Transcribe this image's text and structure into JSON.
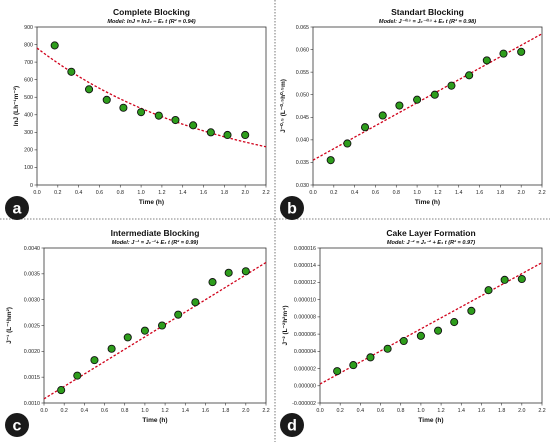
{
  "colors": {
    "marker": "#2e9d1c",
    "marker_edge": "#111111",
    "fit": "#d0021b",
    "divider": "#555555",
    "badge": "#1a1a1a"
  },
  "chart_data": [
    {
      "type": "scatter",
      "badge": "a",
      "title": "Complete Blocking",
      "model": "Model: lnJ = lnJ₀ − E₁ t (R² = 0.94)",
      "xlabel": "Time (h)",
      "ylabel": "lnJ (Lh⁻¹m⁻²)",
      "xlim": [
        0.0,
        2.2
      ],
      "ylim": [
        0,
        900
      ],
      "xticks": [
        "0.0",
        "0.2",
        "0.4",
        "0.6",
        "0.8",
        "1.0",
        "1.2",
        "1.4",
        "1.6",
        "1.8",
        "2.0",
        "2.2"
      ],
      "yticks": [
        "0",
        "100",
        "200",
        "300",
        "400",
        "500",
        "600",
        "700",
        "800",
        "900"
      ],
      "x": [
        0.17,
        0.33,
        0.5,
        0.67,
        0.83,
        1.0,
        1.17,
        1.33,
        1.5,
        1.67,
        1.83,
        2.0
      ],
      "y": [
        795,
        645,
        545,
        485,
        440,
        415,
        395,
        370,
        340,
        300,
        285,
        285
      ],
      "fit": {
        "type": "exp",
        "a": 780,
        "b": 0.58
      }
    },
    {
      "type": "scatter",
      "badge": "b",
      "title": "Standart Blocking",
      "model": "Model: J⁻⁰·⁵ = J₀⁻⁰·⁵ + E₂ t (R² = 0.98)",
      "xlabel": "Time (h)",
      "ylabel": "J⁻⁰·⁵ (L⁻⁰·⁵h⁰·⁵m)",
      "xlim": [
        0.0,
        2.2
      ],
      "ylim": [
        0.03,
        0.065
      ],
      "xticks": [
        "0.0",
        "0.2",
        "0.4",
        "0.6",
        "0.8",
        "1.0",
        "1.2",
        "1.4",
        "1.6",
        "1.8",
        "2.0",
        "2.2"
      ],
      "yticks": [
        "0.030",
        "0.035",
        "0.040",
        "0.045",
        "0.050",
        "0.055",
        "0.060",
        "0.065"
      ],
      "x": [
        0.17,
        0.33,
        0.5,
        0.67,
        0.83,
        1.0,
        1.17,
        1.33,
        1.5,
        1.67,
        1.83,
        2.0
      ],
      "y": [
        0.0355,
        0.0392,
        0.0428,
        0.0454,
        0.0476,
        0.0489,
        0.05,
        0.052,
        0.0543,
        0.0576,
        0.0591,
        0.0595
      ],
      "fit": {
        "type": "linear",
        "x0": 0.0,
        "y0": 0.0355,
        "x1": 2.2,
        "y1": 0.0635
      }
    },
    {
      "type": "scatter",
      "badge": "c",
      "title": "Intermediate Blocking",
      "model": "Model: J⁻¹ = J₀⁻¹+ E₃ t (R² = 0.99)",
      "xlabel": "Time (h)",
      "ylabel": "J⁻¹ (L⁻¹hm²)",
      "xlim": [
        0.0,
        2.2
      ],
      "ylim": [
        0.001,
        0.004
      ],
      "xticks": [
        "0.0",
        "0.2",
        "0.4",
        "0.6",
        "0.8",
        "1.0",
        "1.2",
        "1.4",
        "1.6",
        "1.8",
        "2.0",
        "2.2"
      ],
      "yticks": [
        "0.0010",
        "0.0015",
        "0.0020",
        "0.0025",
        "0.0030",
        "0.0035",
        "0.0040"
      ],
      "x": [
        0.17,
        0.33,
        0.5,
        0.67,
        0.83,
        1.0,
        1.17,
        1.33,
        1.5,
        1.67,
        1.83,
        2.0
      ],
      "y": [
        0.00125,
        0.00153,
        0.00183,
        0.00205,
        0.00227,
        0.0024,
        0.0025,
        0.00271,
        0.00295,
        0.00334,
        0.00352,
        0.00355
      ],
      "fit": {
        "type": "linear",
        "x0": 0.0,
        "y0": 0.00108,
        "x1": 2.2,
        "y1": 0.00372
      }
    },
    {
      "type": "scatter",
      "badge": "d",
      "title": "Cake Layer Formation",
      "model": "Model: J⁻² = J₀⁻² + E₄ t (R² = 0.97)",
      "xlabel": "Time (h)",
      "ylabel": "J⁻² (L⁻²h²m⁴)",
      "xlim": [
        0.0,
        2.2
      ],
      "ylim": [
        -2e-06,
        1.6e-05
      ],
      "xticks": [
        "0.0",
        "0.2",
        "0.4",
        "0.6",
        "0.8",
        "1.0",
        "1.2",
        "1.4",
        "1.6",
        "1.8",
        "2.0",
        "2.2"
      ],
      "yticks": [
        "-0.000002",
        "0.000000",
        "0.000002",
        "0.000004",
        "0.000006",
        "0.000008",
        "0.000010",
        "0.000012",
        "0.000014",
        "0.000016"
      ],
      "x": [
        0.17,
        0.33,
        0.5,
        0.67,
        0.83,
        1.0,
        1.17,
        1.33,
        1.5,
        1.67,
        1.83,
        2.0
      ],
      "y": [
        1.7e-06,
        2.4e-06,
        3.3e-06,
        4.3e-06,
        5.2e-06,
        5.8e-06,
        6.4e-06,
        7.4e-06,
        8.7e-06,
        1.11e-05,
        1.23e-05,
        1.24e-05
      ],
      "fit": {
        "type": "linear",
        "x0": 0.0,
        "y0": 2e-07,
        "x1": 2.2,
        "y1": 1.43e-05
      }
    }
  ]
}
